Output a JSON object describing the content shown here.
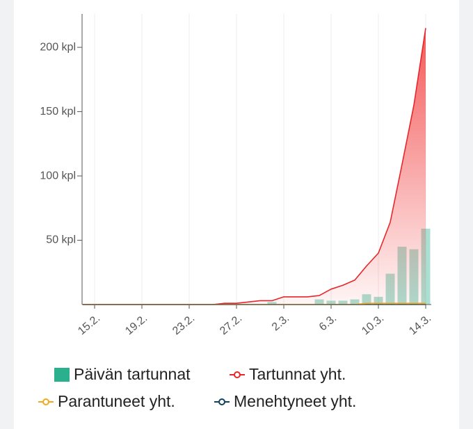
{
  "chart_data": {
    "type": "bar-line",
    "categories": [
      null,
      "15.2.",
      null,
      null,
      null,
      "19.2.",
      null,
      null,
      null,
      "23.2.",
      null,
      null,
      null,
      "27.2.",
      null,
      null,
      null,
      "2.3.",
      null,
      null,
      null,
      "6.3.",
      null,
      null,
      null,
      "10.3.",
      null,
      null,
      null,
      "14.3."
    ],
    "ylim": [
      0,
      226
    ],
    "yticks": [
      {
        "value": 50,
        "label": "50 kpl"
      },
      {
        "value": 100,
        "label": "100 kpl"
      },
      {
        "value": 150,
        "label": "150 kpl"
      },
      {
        "value": 200,
        "label": "200 kpl"
      }
    ],
    "grid": true,
    "series": [
      {
        "name": "Päivän tartunnat",
        "type": "bar",
        "color": "#2bb08e",
        "values": [
          0,
          0,
          0,
          0,
          0,
          0,
          0,
          0,
          0,
          0,
          0,
          0,
          0,
          0,
          0,
          0,
          2,
          0,
          0,
          0,
          4,
          3,
          3,
          4,
          8,
          6,
          24,
          45,
          43,
          59
        ]
      },
      {
        "name": "Tartunnat yht.",
        "type": "line",
        "color": "#e8252a",
        "values": [
          0,
          0,
          0,
          0,
          0,
          0,
          0,
          0,
          0,
          0,
          0,
          0,
          1,
          1,
          2,
          3,
          3,
          6,
          6,
          6,
          7,
          12,
          15,
          19,
          30,
          40,
          64,
          109,
          155,
          215
        ]
      },
      {
        "name": "Parantuneet yht.",
        "type": "line",
        "color": "#f2a81d",
        "values": [
          0,
          0,
          0,
          0,
          0,
          0,
          0,
          0,
          0,
          0,
          0,
          0,
          0,
          0,
          0,
          0,
          0,
          0,
          0,
          0,
          0,
          0,
          0,
          0,
          1,
          1,
          1,
          1,
          1,
          1
        ]
      },
      {
        "name": "Menehtyneet yht.",
        "type": "line",
        "color": "#10415e",
        "values": [
          0,
          0,
          0,
          0,
          0,
          0,
          0,
          0,
          0,
          0,
          0,
          0,
          0,
          0,
          0,
          0,
          0,
          0,
          0,
          0,
          0,
          0,
          0,
          0,
          0,
          0,
          0,
          0,
          0,
          0
        ]
      }
    ]
  }
}
